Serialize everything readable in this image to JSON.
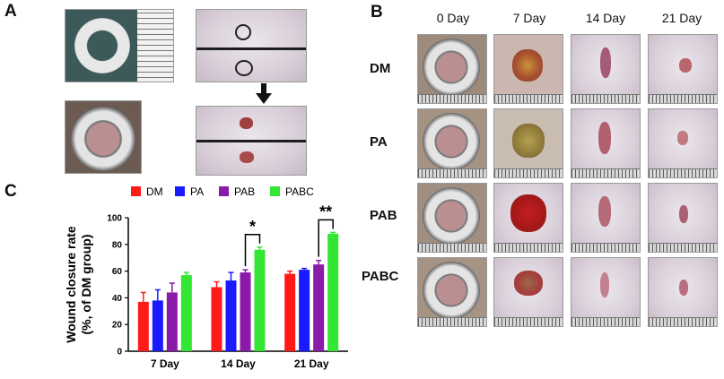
{
  "panels": {
    "a": "A",
    "b": "B",
    "c": "C"
  },
  "panel_b": {
    "columns": [
      "0 Day",
      "7 Day",
      "14 Day",
      "21 Day"
    ],
    "rows": [
      "DM",
      "PA",
      "PAB",
      "PABC"
    ]
  },
  "chart_data": {
    "type": "bar",
    "categories": [
      "7 Day",
      "14 Day",
      "21 Day"
    ],
    "series": [
      {
        "name": "DM",
        "color": "#ff1a1a",
        "values": [
          37,
          48,
          58
        ],
        "errors": [
          7,
          4,
          2
        ]
      },
      {
        "name": "PA",
        "color": "#1a1aff",
        "values": [
          38,
          53,
          61
        ],
        "errors": [
          8,
          6,
          1
        ]
      },
      {
        "name": "PAB",
        "color": "#8a1aa8",
        "values": [
          44,
          59,
          65
        ],
        "errors": [
          7,
          2,
          3
        ]
      },
      {
        "name": "PABC",
        "color": "#33e633",
        "values": [
          57,
          76,
          88
        ],
        "errors": [
          2,
          2,
          1
        ]
      }
    ],
    "ylabel": "Wound closure rate\n(%, of DM group)",
    "ylim": [
      0,
      100
    ],
    "yticks": [
      0,
      20,
      40,
      60,
      80,
      100
    ],
    "legend_position": "top",
    "significance": [
      {
        "category": "14 Day",
        "label": "*"
      },
      {
        "category": "21 Day",
        "label": "**"
      }
    ]
  }
}
